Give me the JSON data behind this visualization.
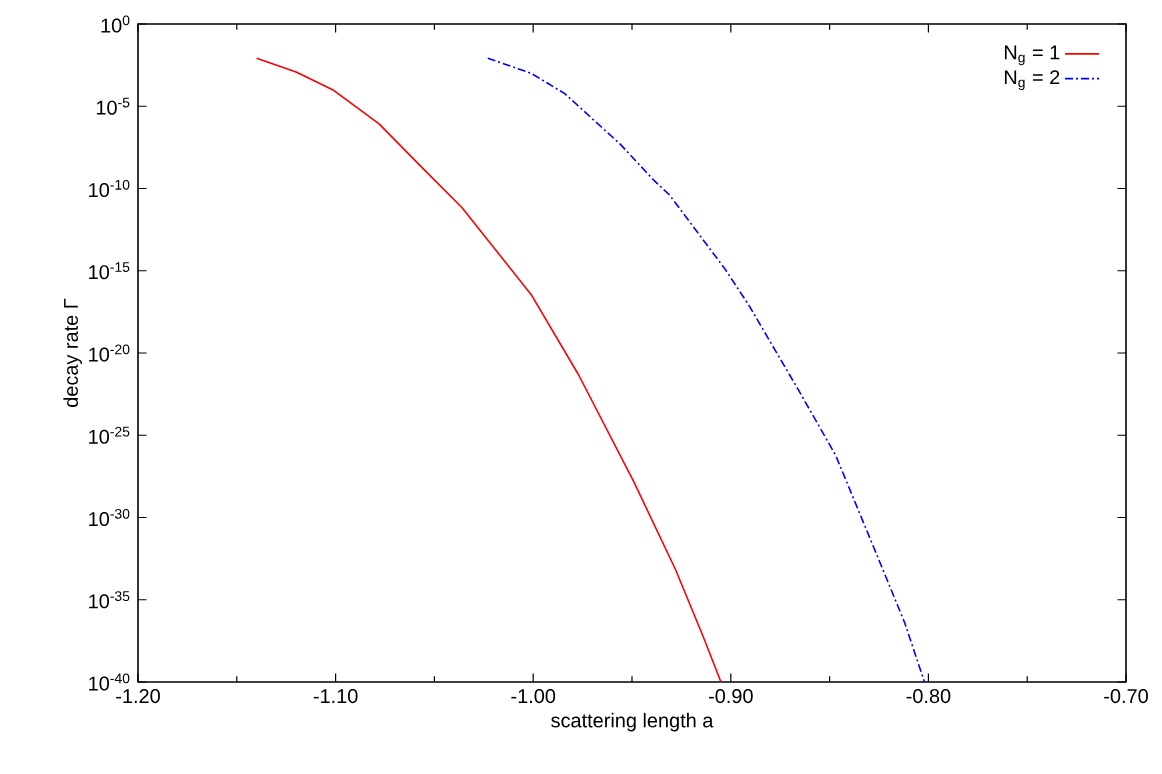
{
  "chart_data": {
    "type": "line",
    "xlabel": "scattering length a",
    "ylabel": "decay rate Γ",
    "log": "y",
    "xlim": [
      -1.2,
      -0.7
    ],
    "ylim": [
      1e-40,
      1
    ],
    "xticks": [
      {
        "value": -1.2,
        "label": "-1.20"
      },
      {
        "value": -1.1,
        "label": "-1.10"
      },
      {
        "value": -1.0,
        "label": "-1.00"
      },
      {
        "value": -0.9,
        "label": "-0.90"
      },
      {
        "value": -0.8,
        "label": "-0.80"
      },
      {
        "value": -0.7,
        "label": "-0.70"
      }
    ],
    "yticks": [
      {
        "value": 1e-40,
        "label": "10$^{-40}$"
      },
      {
        "value": 1e-35,
        "label": "10$^{-35}$"
      },
      {
        "value": 1e-30,
        "label": "10$^{-30}$"
      },
      {
        "value": 1e-25,
        "label": "10$^{-25}$"
      },
      {
        "value": 1e-20,
        "label": "10$^{-20}$"
      },
      {
        "value": 1e-15,
        "label": "10$^{-15}$"
      },
      {
        "value": 1e-10,
        "label": "10$^{-10}$"
      },
      {
        "value": 1e-05,
        "label": "10$^{-5}$"
      },
      {
        "value": 1,
        "label": "10$^{0}$"
      }
    ],
    "legend": "top right",
    "grid": false,
    "series": [
      {
        "name": "N$_{g}$ = 1",
        "color": "#ff0000",
        "line_style": "solid",
        "x": [
          -1.14,
          -1.12,
          -1.101,
          -1.078,
          -1.057,
          -1.036,
          -1.001,
          -0.977,
          -0.949,
          -0.928,
          -0.914,
          -0.905
        ],
        "values": [
          0.0083,
          0.0012,
          9.3e-05,
          8.5e-07,
          2.3e-09,
          6.8e-12,
          3.5e-17,
          4.6e-22,
          1.4e-28,
          6.9e-34,
          5.9e-38,
          1e-40
        ]
      },
      {
        "name": "N$_{g}$ = 2",
        "color": "#0000ff",
        "line_style": "dashdot",
        "x": [
          -1.023,
          -1.001,
          -0.984,
          -0.956,
          -0.939,
          -0.931,
          -0.903,
          -0.891,
          -0.866,
          -0.847,
          -0.826,
          -0.812,
          -0.802
        ],
        "values": [
          0.0083,
          0.001,
          5.8e-05,
          5e-08,
          3.2e-10,
          4e-11,
          1.3e-15,
          8.5e-18,
          6.3e-23,
          6.3e-27,
          5e-33,
          4e-37,
          1e-40
        ]
      }
    ]
  }
}
